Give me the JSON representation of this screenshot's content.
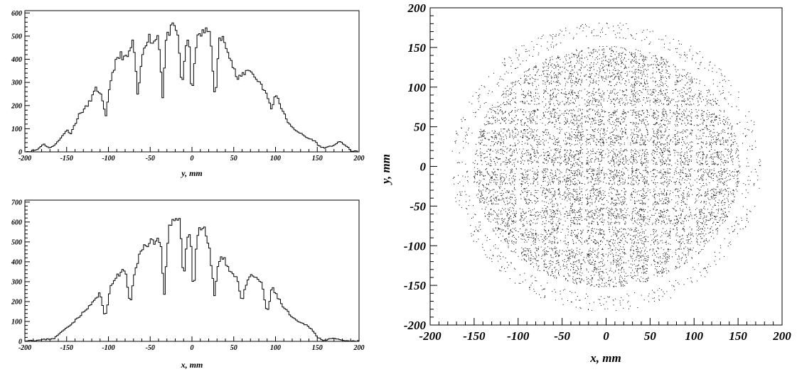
{
  "chart_data": [
    {
      "type": "histogram",
      "title": "",
      "xlabel": "y, mm",
      "ylabel": "",
      "xlim": [
        -200,
        200
      ],
      "ylim": [
        0,
        610
      ],
      "x_ticks": [
        "-200",
        "-150",
        "-100",
        "-50",
        "0",
        "50",
        "100",
        "150",
        "200"
      ],
      "y_ticks": [
        "0",
        "100",
        "200",
        "300",
        "400",
        "500",
        "600"
      ],
      "x": [
        -195,
        -185,
        -178,
        -170,
        -160,
        -150,
        -145,
        -135,
        -125,
        -115,
        -110,
        -103,
        -98,
        -92,
        -85,
        -78,
        -70,
        -65,
        -58,
        -52,
        -46,
        -40,
        -35,
        -31,
        -27,
        -22,
        -17,
        -12,
        -8,
        -4,
        0,
        4,
        8,
        15,
        22,
        28,
        32,
        36,
        42,
        48,
        55,
        62,
        70,
        75,
        82,
        90,
        96,
        100,
        106,
        112,
        118,
        124,
        130,
        138,
        146,
        154,
        162,
        170,
        178,
        186,
        192
      ],
      "values": [
        2,
        10,
        35,
        15,
        45,
        95,
        80,
        160,
        200,
        270,
        260,
        150,
        300,
        380,
        420,
        400,
        480,
        240,
        450,
        500,
        470,
        510,
        240,
        480,
        520,
        540,
        510,
        270,
        440,
        510,
        220,
        450,
        500,
        520,
        520,
        200,
        480,
        490,
        460,
        380,
        310,
        340,
        360,
        320,
        300,
        240,
        180,
        260,
        200,
        150,
        110,
        95,
        80,
        60,
        50,
        20,
        18,
        30,
        45,
        20,
        2
      ]
    },
    {
      "type": "histogram",
      "title": "",
      "xlabel": "x, mm",
      "ylabel": "",
      "xlim": [
        -200,
        200
      ],
      "ylim": [
        0,
        710
      ],
      "x_ticks": [
        "-200",
        "-150",
        "-100",
        "-50",
        "0",
        "50",
        "100",
        "150",
        "200"
      ],
      "y_ticks": [
        "0",
        "100",
        "200",
        "300",
        "400",
        "500",
        "600",
        "700"
      ],
      "x": [
        -185,
        -175,
        -165,
        -158,
        -150,
        -142,
        -134,
        -126,
        -118,
        -110,
        -104,
        -98,
        -92,
        -86,
        -80,
        -74,
        -68,
        -62,
        -56,
        -50,
        -44,
        -38,
        -33,
        -28,
        -24,
        -20,
        -15,
        -10,
        -6,
        -2,
        2,
        6,
        10,
        16,
        22,
        27,
        31,
        36,
        42,
        48,
        54,
        60,
        66,
        72,
        78,
        84,
        90,
        96,
        102,
        108,
        114,
        120,
        126,
        132,
        138,
        144,
        150,
        158,
        166,
        174,
        182,
        190
      ],
      "values": [
        5,
        10,
        15,
        40,
        70,
        95,
        130,
        160,
        200,
        240,
        120,
        260,
        320,
        340,
        360,
        180,
        370,
        440,
        480,
        510,
        500,
        520,
        230,
        560,
        580,
        620,
        640,
        300,
        520,
        560,
        220,
        540,
        580,
        560,
        430,
        230,
        380,
        420,
        390,
        340,
        320,
        200,
        300,
        330,
        320,
        280,
        140,
        270,
        230,
        180,
        150,
        120,
        100,
        90,
        80,
        60,
        20,
        5,
        15,
        10,
        2,
        1
      ]
    },
    {
      "type": "scatter",
      "title": "",
      "xlabel": "x, mm",
      "ylabel": "y, mm",
      "xlim": [
        -200,
        200
      ],
      "ylim": [
        -200,
        200
      ],
      "x_ticks": [
        "-200",
        "-150",
        "-100",
        "-50",
        "0",
        "50",
        "100",
        "150",
        "200"
      ],
      "y_ticks": [
        "-200",
        "-150",
        "-100",
        "-50",
        "0",
        "50",
        "100",
        "150",
        "200"
      ],
      "description_points": {
        "inner_disk_radius_mm": 152,
        "outer_ring_radius_mm": [
          162,
          182
        ],
        "grid_gap_positions_mm": [
          -100,
          -75,
          -50,
          -25,
          0,
          25,
          50,
          75,
          100
        ],
        "point_count": 9000
      }
    }
  ]
}
